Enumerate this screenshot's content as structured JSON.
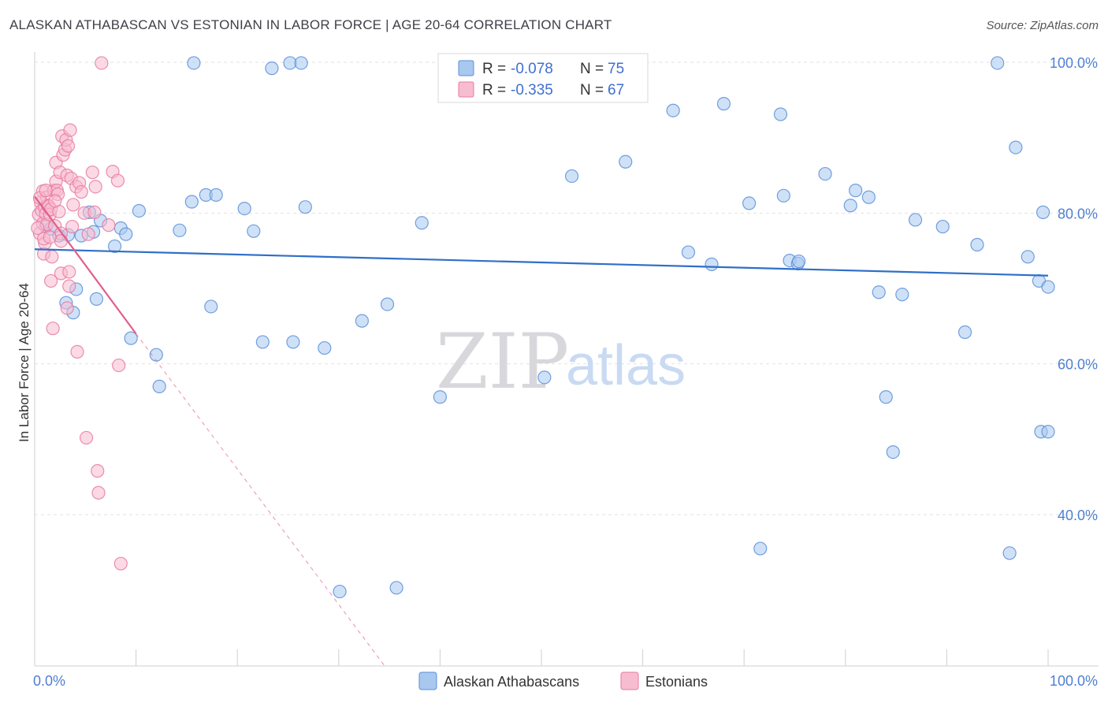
{
  "title": "ALASKAN ATHABASCAN VS ESTONIAN IN LABOR FORCE | AGE 20-64 CORRELATION CHART",
  "source": "Source: ZipAtlas.com",
  "watermark": {
    "zip": "ZIP",
    "atlas": "atlas"
  },
  "colors": {
    "blue_fill": "#a8c8f0",
    "blue_stroke": "#5b8fd8",
    "blue_line": "#2f6fc8",
    "pink_fill": "#f8bcd0",
    "pink_stroke": "#e87aa0",
    "pink_line": "#e0608c",
    "tick_label": "#4f7fd0",
    "grid": "#e2e2e6"
  },
  "legend": {
    "rows": [
      {
        "r_label": "R = ",
        "r_value": "-0.078",
        "n_label": "N = ",
        "n_value": "75"
      },
      {
        "r_label": "R = ",
        "r_value": "-0.335",
        "n_label": "N = ",
        "n_value": "67"
      }
    ]
  },
  "chart_data": {
    "type": "scatter",
    "title": "ALASKAN ATHABASCAN VS ESTONIAN IN LABOR FORCE | AGE 20-64 CORRELATION CHART",
    "xlabel": "",
    "ylabel": "In Labor Force | Age 20-64",
    "xlim": [
      0,
      100
    ],
    "ylim": [
      20,
      102
    ],
    "x_tick_labels": [
      "0.0%",
      "100.0%"
    ],
    "y_ticks": [
      40,
      60,
      80,
      100
    ],
    "y_tick_labels": [
      "40.0%",
      "60.0%",
      "80.0%",
      "100.0%"
    ],
    "grid": true,
    "legend_position": "top-center",
    "series": [
      {
        "name": "Alaskan Athabascans",
        "color": "#5b8fd8",
        "trend": {
          "x0": 0,
          "y0": 75.2,
          "x1": 100,
          "y1": 71.7
        },
        "points": [
          [
            1.1,
            78.2
          ],
          [
            1.6,
            77.9
          ],
          [
            2.4,
            77.0
          ],
          [
            3.3,
            77.1
          ],
          [
            3.1,
            68.1
          ],
          [
            3.8,
            66.8
          ],
          [
            4.1,
            69.9
          ],
          [
            4.6,
            77.0
          ],
          [
            5.4,
            80.1
          ],
          [
            5.8,
            77.5
          ],
          [
            6.1,
            68.6
          ],
          [
            6.5,
            79.0
          ],
          [
            7.9,
            75.6
          ],
          [
            8.5,
            78.0
          ],
          [
            9.0,
            77.2
          ],
          [
            9.5,
            63.4
          ],
          [
            10.3,
            80.3
          ],
          [
            12.0,
            61.2
          ],
          [
            12.3,
            57.0
          ],
          [
            14.3,
            77.7
          ],
          [
            15.5,
            81.5
          ],
          [
            15.7,
            99.9
          ],
          [
            16.9,
            82.4
          ],
          [
            17.4,
            67.6
          ],
          [
            17.9,
            82.4
          ],
          [
            20.7,
            80.6
          ],
          [
            21.6,
            77.6
          ],
          [
            22.5,
            62.9
          ],
          [
            23.4,
            99.2
          ],
          [
            25.2,
            99.9
          ],
          [
            25.5,
            62.9
          ],
          [
            26.3,
            99.9
          ],
          [
            26.7,
            80.8
          ],
          [
            28.6,
            62.1
          ],
          [
            30.1,
            29.8
          ],
          [
            32.3,
            65.7
          ],
          [
            34.8,
            67.9
          ],
          [
            35.7,
            30.3
          ],
          [
            38.2,
            78.7
          ],
          [
            40.0,
            55.6
          ],
          [
            50.3,
            58.2
          ],
          [
            53.0,
            84.9
          ],
          [
            58.3,
            86.8
          ],
          [
            63.0,
            93.6
          ],
          [
            64.5,
            74.8
          ],
          [
            66.8,
            73.2
          ],
          [
            68.0,
            94.5
          ],
          [
            70.5,
            81.3
          ],
          [
            71.6,
            35.5
          ],
          [
            73.6,
            93.1
          ],
          [
            73.9,
            82.3
          ],
          [
            74.5,
            73.7
          ],
          [
            75.3,
            73.3
          ],
          [
            75.4,
            73.6
          ],
          [
            78.0,
            85.2
          ],
          [
            80.5,
            81.0
          ],
          [
            81.0,
            83.0
          ],
          [
            82.3,
            82.1
          ],
          [
            83.3,
            69.5
          ],
          [
            84.0,
            55.6
          ],
          [
            84.7,
            48.3
          ],
          [
            85.6,
            69.2
          ],
          [
            86.9,
            79.1
          ],
          [
            89.6,
            78.2
          ],
          [
            91.8,
            64.2
          ],
          [
            93.0,
            75.8
          ],
          [
            95.0,
            99.9
          ],
          [
            96.2,
            34.9
          ],
          [
            96.8,
            88.7
          ],
          [
            98.0,
            74.2
          ],
          [
            99.1,
            71.0
          ],
          [
            99.3,
            51.0
          ],
          [
            99.5,
            80.1
          ],
          [
            100.0,
            51.0
          ],
          [
            100.0,
            70.2
          ]
        ]
      },
      {
        "name": "Estonians",
        "color": "#e87aa0",
        "trend": {
          "x0": 0,
          "y0": 82.2,
          "x1": 10,
          "y1": 64.0
        },
        "trend_extended": {
          "x0": 10,
          "y0": 64.0,
          "x1": 34.5,
          "y1": 20.0
        },
        "points": [
          [
            0.4,
            79.8
          ],
          [
            0.5,
            77.3
          ],
          [
            0.6,
            81.4
          ],
          [
            0.7,
            80.3
          ],
          [
            0.8,
            78.6
          ],
          [
            0.8,
            82.9
          ],
          [
            0.9,
            74.6
          ],
          [
            1.0,
            76.0
          ],
          [
            1.0,
            80.7
          ],
          [
            1.1,
            79.9
          ],
          [
            1.2,
            82.1
          ],
          [
            1.2,
            78.5
          ],
          [
            1.3,
            81.0
          ],
          [
            1.4,
            80.9
          ],
          [
            1.5,
            79.8
          ],
          [
            1.6,
            80.5
          ],
          [
            1.6,
            71.0
          ],
          [
            1.7,
            74.2
          ],
          [
            1.8,
            64.7
          ],
          [
            1.9,
            83.0
          ],
          [
            2.0,
            78.3
          ],
          [
            2.1,
            84.2
          ],
          [
            2.1,
            86.7
          ],
          [
            2.2,
            83.0
          ],
          [
            2.3,
            82.5
          ],
          [
            2.4,
            80.2
          ],
          [
            2.5,
            85.4
          ],
          [
            2.6,
            77.3
          ],
          [
            2.6,
            76.3
          ],
          [
            2.6,
            72.0
          ],
          [
            2.7,
            90.2
          ],
          [
            2.8,
            87.7
          ],
          [
            3.0,
            88.4
          ],
          [
            3.1,
            89.7
          ],
          [
            3.2,
            85.0
          ],
          [
            3.2,
            67.4
          ],
          [
            3.3,
            88.9
          ],
          [
            3.4,
            72.2
          ],
          [
            3.4,
            70.3
          ],
          [
            3.5,
            91.0
          ],
          [
            3.6,
            84.6
          ],
          [
            3.7,
            78.2
          ],
          [
            3.8,
            81.1
          ],
          [
            4.1,
            83.5
          ],
          [
            4.2,
            61.6
          ],
          [
            4.4,
            84.0
          ],
          [
            4.6,
            82.8
          ],
          [
            4.9,
            80.0
          ],
          [
            5.1,
            50.2
          ],
          [
            5.3,
            77.2
          ],
          [
            5.7,
            85.4
          ],
          [
            5.9,
            80.1
          ],
          [
            6.0,
            83.5
          ],
          [
            6.2,
            45.8
          ],
          [
            6.3,
            42.9
          ],
          [
            6.6,
            99.9
          ],
          [
            7.3,
            78.4
          ],
          [
            7.7,
            85.5
          ],
          [
            8.2,
            84.3
          ],
          [
            8.3,
            59.8
          ],
          [
            8.5,
            33.5
          ],
          [
            0.3,
            78.0
          ],
          [
            0.5,
            82.0
          ],
          [
            0.9,
            76.6
          ],
          [
            1.1,
            83.0
          ],
          [
            2.0,
            81.6
          ],
          [
            1.5,
            76.8
          ]
        ]
      }
    ]
  }
}
